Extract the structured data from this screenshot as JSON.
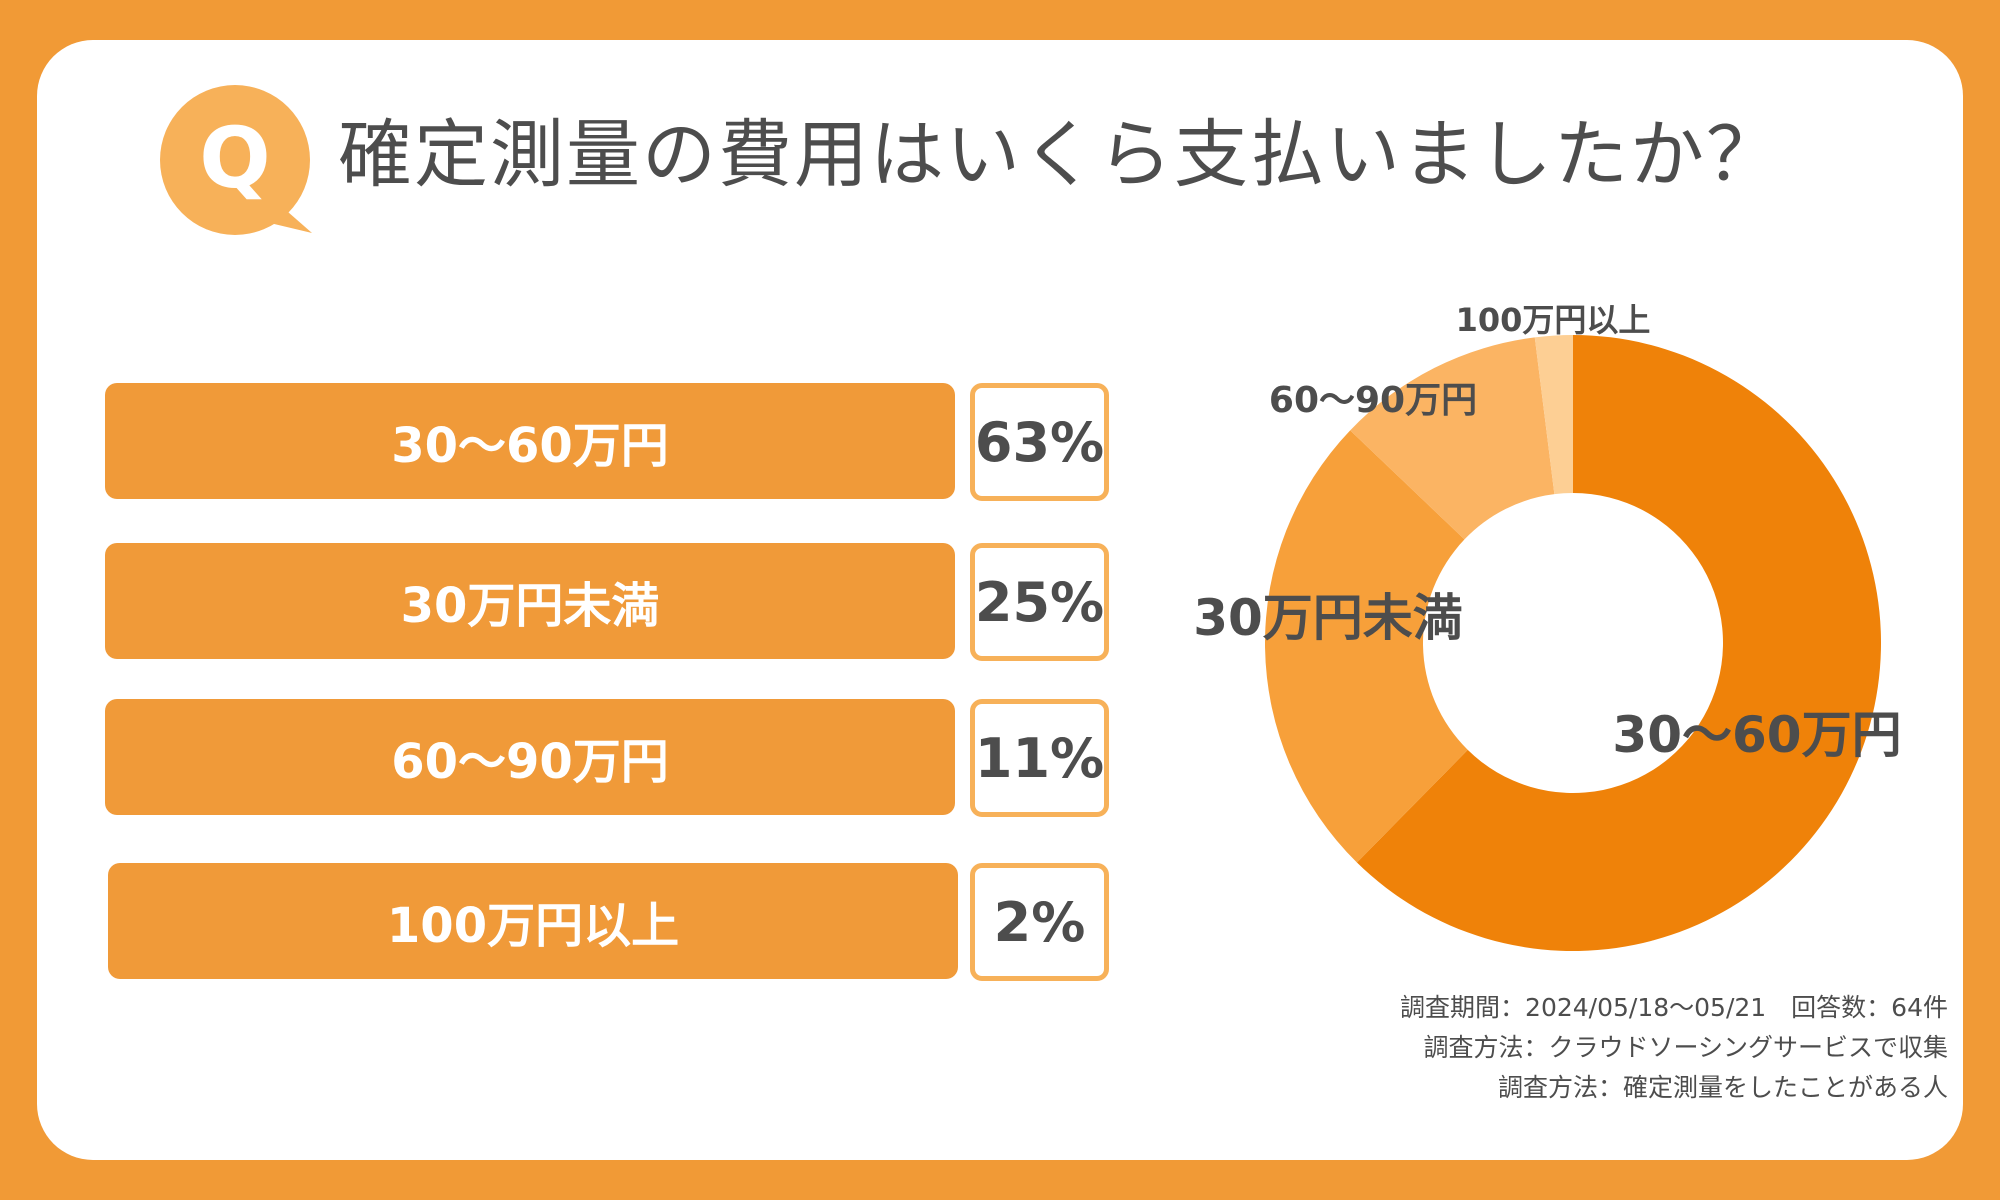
{
  "header": {
    "q_letter": "Q",
    "title": "確定測量の費用はいくら支払いましたか？"
  },
  "colors": {
    "background": "#f19a36",
    "bar": "#f09a39",
    "box_border": "#f7b159",
    "text": "#4d4d4d",
    "slice_1": "#ef8209",
    "slice_2": "#f7a03a",
    "slice_3": "#fbb463",
    "slice_4": "#fdcf94"
  },
  "rows": [
    {
      "label": "30〜60万円",
      "pct": "63%"
    },
    {
      "label": "30万円未満",
      "pct": "25%"
    },
    {
      "label": "60〜90万円",
      "pct": "11%"
    },
    {
      "label": "100万円以上",
      "pct": "2%"
    }
  ],
  "notes": {
    "line1": "調査期間：2024/05/18〜05/21　回答数：64件",
    "line2": "調査方法：クラウドソーシングサービスで収集",
    "line3": "調査方法：確定測量をしたことがある人"
  },
  "chart_data": {
    "type": "pie",
    "variant": "donut",
    "title": "確定測量の費用はいくら支払いましたか？",
    "categories": [
      "30〜60万円",
      "30万円未満",
      "60〜90万円",
      "100万円以上"
    ],
    "values": [
      63,
      25,
      11,
      2
    ],
    "unit": "%",
    "colors": [
      "#ef8209",
      "#f7a03a",
      "#fbb463",
      "#fdcf94"
    ],
    "start_angle": "12 o'clock",
    "direction": "clockwise"
  }
}
